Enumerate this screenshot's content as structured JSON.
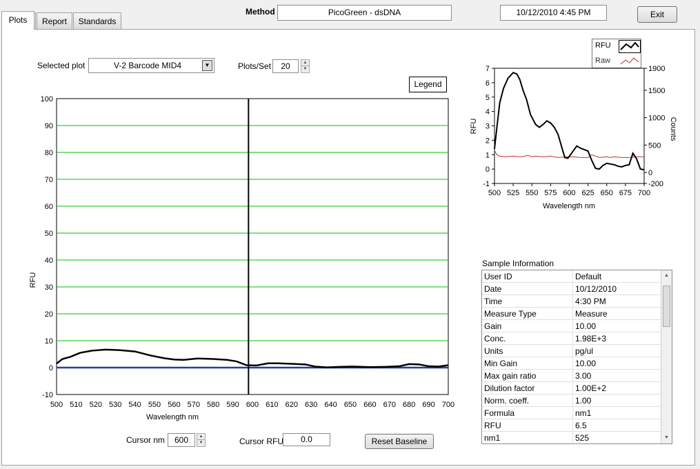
{
  "tabs": [
    {
      "label": "Plots"
    },
    {
      "label": "Report"
    },
    {
      "label": "Standards"
    }
  ],
  "header": {
    "method_label": "Method",
    "method_value": "PicoGreen - dsDNA",
    "datetime": "10/12/2010  4:45 PM",
    "exit_label": "Exit"
  },
  "controls": {
    "selected_plot_label": "Selected plot",
    "selected_plot_value": "V-2 Barcode MID4",
    "plots_per_set_label": "Plots/Set",
    "plots_per_set_value": "20",
    "legend_label": "Legend",
    "cursor_nm_label": "Cursor nm",
    "cursor_nm_value": "600",
    "cursor_rfu_label": "Cursor RFU",
    "cursor_rfu_value": "0.0",
    "reset_baseline_label": "Reset Baseline"
  },
  "chart_data": [
    {
      "type": "line",
      "xlabel": "Wavelength nm",
      "ylabel": "RFU",
      "xlim": [
        500,
        700
      ],
      "ylim": [
        -10,
        100
      ],
      "x_ticks": [
        500,
        510,
        520,
        530,
        540,
        550,
        560,
        570,
        580,
        590,
        600,
        610,
        620,
        630,
        640,
        650,
        660,
        670,
        680,
        690,
        700
      ],
      "y_ticks": [
        -10,
        0,
        10,
        20,
        30,
        40,
        50,
        60,
        70,
        80,
        90,
        100
      ],
      "grid": "horizontal",
      "grid_color": "#00c000",
      "cursor_x": 598,
      "series": [
        {
          "color": "#000000",
          "x": [
            500,
            503,
            507,
            512,
            518,
            525,
            532,
            540,
            548,
            555,
            560,
            565,
            572,
            580,
            587,
            592,
            597,
            602,
            608,
            613,
            620,
            627,
            632,
            638,
            645,
            652,
            660,
            668,
            675,
            680,
            685,
            690,
            695,
            700
          ],
          "y": [
            1.5,
            3.2,
            4.0,
            5.5,
            6.3,
            6.7,
            6.5,
            6.0,
            4.5,
            3.5,
            3.0,
            2.9,
            3.4,
            3.2,
            2.9,
            2.3,
            0.9,
            0.8,
            1.6,
            1.6,
            1.4,
            1.2,
            0.4,
            0.1,
            0.3,
            0.4,
            0.2,
            0.3,
            0.5,
            1.3,
            1.2,
            0.5,
            0.4,
            0.9
          ]
        },
        {
          "color": "#1f3fa0",
          "x": [
            500,
            700
          ],
          "y": [
            0,
            0
          ]
        }
      ]
    },
    {
      "type": "line",
      "xlabel": "Wavelength  nm",
      "ylabel": "RFU",
      "y2label": "Counts",
      "xlim": [
        500,
        700
      ],
      "ylim": [
        -1,
        7
      ],
      "y2lim": [
        -200,
        1900
      ],
      "x_ticks": [
        500,
        525,
        550,
        575,
        600,
        625,
        650,
        675,
        700
      ],
      "y_ticks": [
        -1,
        0,
        1,
        2,
        3,
        4,
        5,
        6,
        7
      ],
      "y2_ticks": [
        -200,
        0,
        500,
        1000,
        1500,
        1900
      ],
      "series": [
        {
          "name": "RFU",
          "color": "#000000",
          "x": [
            500,
            503,
            507,
            512,
            518,
            525,
            530,
            534,
            538,
            543,
            548,
            555,
            560,
            565,
            570,
            575,
            580,
            585,
            590,
            594,
            598,
            601,
            605,
            610,
            615,
            620,
            625,
            630,
            635,
            640,
            645,
            650,
            655,
            660,
            665,
            670,
            675,
            680,
            685,
            690,
            695,
            700
          ],
          "y": [
            1.4,
            2.8,
            4.6,
            5.6,
            6.3,
            6.7,
            6.6,
            6.2,
            5.5,
            4.8,
            3.8,
            3.1,
            2.9,
            3.1,
            3.35,
            3.2,
            2.9,
            2.4,
            1.5,
            0.8,
            0.75,
            0.95,
            1.25,
            1.6,
            1.45,
            1.35,
            1.25,
            0.6,
            0.05,
            0.0,
            0.25,
            0.4,
            0.35,
            0.3,
            0.2,
            0.15,
            0.25,
            0.3,
            1.1,
            0.7,
            0.0,
            -0.05
          ]
        },
        {
          "name": "Raw",
          "color": "#c03030",
          "x": [
            500,
            503,
            507,
            515,
            525,
            535,
            545,
            550,
            555,
            565,
            575,
            585,
            595,
            605,
            615,
            625,
            630,
            640,
            650,
            655,
            660,
            670,
            680,
            690,
            700
          ],
          "y": [
            1.3,
            1.0,
            0.9,
            0.85,
            0.9,
            0.85,
            0.95,
            0.85,
            0.9,
            0.85,
            0.9,
            0.8,
            0.85,
            0.85,
            0.8,
            0.8,
            1.0,
            0.8,
            0.85,
            0.8,
            0.85,
            0.8,
            0.8,
            0.85,
            0.85
          ]
        }
      ]
    }
  ],
  "sample_info": {
    "title": "Sample Information",
    "rows": [
      {
        "key": "User ID",
        "value": "Default"
      },
      {
        "key": "Date",
        "value": "10/12/2010"
      },
      {
        "key": "Time",
        "value": "4:30 PM"
      },
      {
        "key": "Measure Type",
        "value": "Measure"
      },
      {
        "key": "Gain",
        "value": "10.00"
      },
      {
        "key": "Conc.",
        "value": "1.98E+3"
      },
      {
        "key": "Units",
        "value": "pg/ul"
      },
      {
        "key": "Min Gain",
        "value": "10.00"
      },
      {
        "key": "Max gain ratio",
        "value": "3.00"
      },
      {
        "key": "Dilution factor",
        "value": "1.00E+2"
      },
      {
        "key": "Norm. coeff.",
        "value": "1.00"
      },
      {
        "key": "Formula",
        "value": "nm1"
      },
      {
        "key": "RFU",
        "value": "6.5"
      },
      {
        "key": "nm1",
        "value": "525"
      }
    ]
  }
}
